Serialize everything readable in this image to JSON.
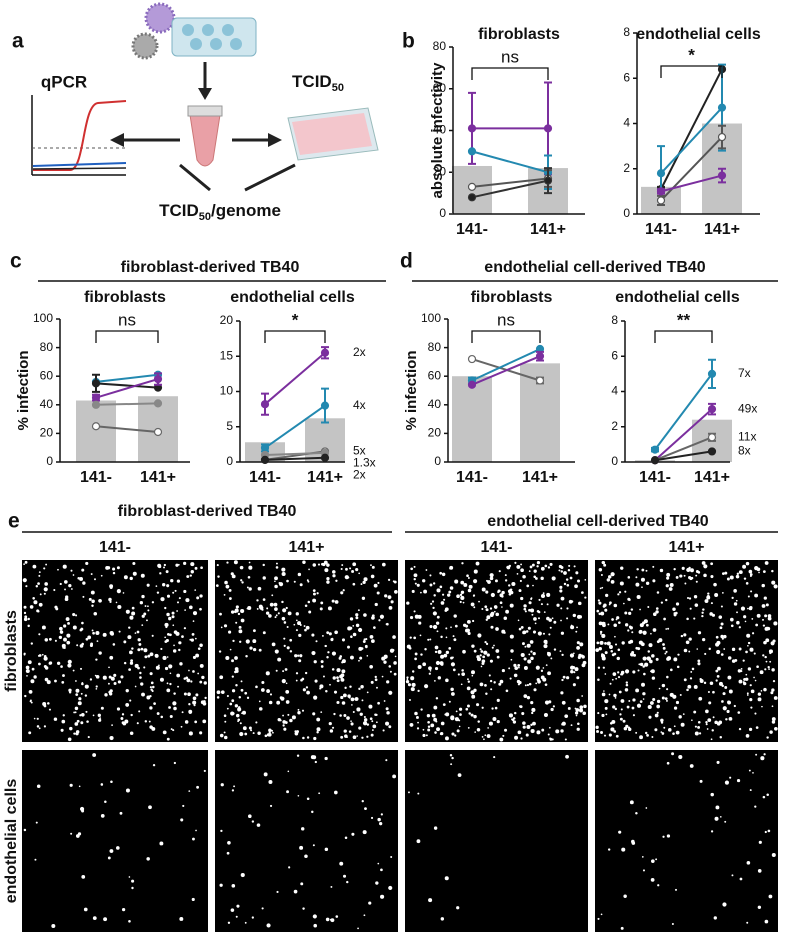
{
  "panel_labels": [
    "a",
    "b",
    "c",
    "d",
    "e"
  ],
  "diagram": {
    "qpcr": "qPCR",
    "tcid": {
      "main": "TCID",
      "sub": "50"
    },
    "result": {
      "main": "TCID",
      "sub": "50",
      "rest": "/genome"
    }
  },
  "headings": {
    "c": "fibroblast-derived TB40",
    "d": "endothelial cell-derived TB40"
  },
  "chart_data": [
    {
      "type": "bar",
      "title": "fibroblasts",
      "ylabel": "absolute infectivity",
      "categories": [
        "141-",
        "141+"
      ],
      "values": [
        23,
        22
      ],
      "color": "#c4c4c4",
      "ylim": [
        0,
        80
      ],
      "yticks": [
        0,
        20,
        40,
        60,
        80
      ],
      "significance": "ns",
      "series": [
        {
          "color": "#7b2f9e",
          "marker_color": "#7b2f9e",
          "values": [
            41,
            41
          ],
          "errors": [
            17,
            22
          ]
        },
        {
          "color": "#2389b0",
          "marker_color": "#2389b0",
          "values": [
            30,
            20
          ],
          "errors": [
            0,
            8
          ]
        },
        {
          "color": "#555555",
          "marker_color": "#ffffff",
          "values": [
            13,
            17
          ],
          "errors": [
            0,
            4
          ]
        },
        {
          "color": "#333333",
          "marker_color": "#222222",
          "values": [
            8,
            16
          ],
          "errors": [
            0,
            6
          ]
        }
      ]
    },
    {
      "type": "bar",
      "title": "endothelial cells",
      "categories": [
        "141-",
        "141+"
      ],
      "values": [
        1.2,
        4.0
      ],
      "color": "#c4c4c4",
      "ylim": [
        0,
        8
      ],
      "yticks": [
        0,
        2,
        4,
        6,
        8
      ],
      "significance": "*",
      "series": [
        {
          "color": "#222222",
          "marker_color": "#222222",
          "values": [
            1.1,
            6.4
          ],
          "errors": [
            0.1,
            0
          ]
        },
        {
          "color": "#2389b0",
          "marker_color": "#2389b0",
          "values": [
            1.8,
            4.7
          ],
          "errors": [
            1.2,
            1.9
          ]
        },
        {
          "color": "#555555",
          "marker_color": "#ffffff",
          "values": [
            0.6,
            3.4
          ],
          "errors": [
            0.2,
            0.5
          ]
        },
        {
          "color": "#7b2f9e",
          "marker_color": "#7b2f9e",
          "values": [
            1.0,
            1.7
          ],
          "errors": [
            0.1,
            0.3
          ]
        }
      ]
    },
    {
      "type": "bar",
      "title": "fibroblasts",
      "ylabel": "% infection",
      "categories": [
        "141-",
        "141+"
      ],
      "values": [
        43,
        46
      ],
      "color": "#c4c4c4",
      "ylim": [
        0,
        100
      ],
      "yticks": [
        0,
        20,
        40,
        60,
        80,
        100
      ],
      "significance": "ns",
      "series": [
        {
          "color": "#2389b0",
          "marker_color": "#2389b0",
          "values": [
            56,
            61
          ],
          "errors": [
            0,
            0
          ]
        },
        {
          "color": "#222222",
          "marker_color": "#222222",
          "values": [
            55,
            52
          ],
          "errors": [
            6,
            0
          ]
        },
        {
          "color": "#7b2f9e",
          "marker_color": "#7b2f9e",
          "values": [
            45,
            58
          ],
          "errors": [
            2,
            4
          ]
        },
        {
          "color": "#888888",
          "marker_color": "#888888",
          "values": [
            40,
            41
          ],
          "errors": [
            0,
            0
          ]
        },
        {
          "color": "#666666",
          "marker_color": "#ffffff",
          "values": [
            25,
            21
          ],
          "errors": [
            0,
            0
          ]
        }
      ]
    },
    {
      "type": "bar",
      "title": "endothelial cells",
      "categories": [
        "141-",
        "141+"
      ],
      "values": [
        2.8,
        6.2
      ],
      "color": "#c4c4c4",
      "ylim": [
        0,
        20
      ],
      "yticks": [
        0,
        5,
        10,
        15,
        20
      ],
      "significance": "*",
      "series": [
        {
          "color": "#7b2f9e",
          "marker_color": "#7b2f9e",
          "values": [
            8.2,
            15.5
          ],
          "errors": [
            1.5,
            0.8
          ],
          "annotation": "2x"
        },
        {
          "color": "#2389b0",
          "marker_color": "#2389b0",
          "values": [
            2.0,
            8.0
          ],
          "errors": [
            0.5,
            2.4
          ],
          "annotation": "4x"
        },
        {
          "color": "#666666",
          "marker_color": "#ffffff",
          "values": [
            0.3,
            1.5
          ],
          "errors": [
            0,
            0
          ],
          "annotation": "5x"
        },
        {
          "color": "#888888",
          "marker_color": "#888888",
          "values": [
            1.0,
            1.3
          ],
          "errors": [
            0,
            0
          ],
          "annotation": "1.3x"
        },
        {
          "color": "#222222",
          "marker_color": "#222222",
          "values": [
            0.3,
            0.6
          ],
          "errors": [
            0,
            0
          ],
          "annotation": "2x"
        }
      ]
    },
    {
      "type": "bar",
      "title": "fibroblasts",
      "ylabel": "% infection",
      "categories": [
        "141-",
        "141+"
      ],
      "values": [
        60,
        69
      ],
      "color": "#c4c4c4",
      "ylim": [
        0,
        100
      ],
      "yticks": [
        0,
        20,
        40,
        60,
        80,
        100
      ],
      "significance": "ns",
      "series": [
        {
          "color": "#666666",
          "marker_color": "#ffffff",
          "values": [
            72,
            57
          ],
          "errors": [
            0,
            2
          ]
        },
        {
          "color": "#2389b0",
          "marker_color": "#2389b0",
          "values": [
            57,
            79
          ],
          "errors": [
            2,
            0
          ]
        },
        {
          "color": "#7b2f9e",
          "marker_color": "#7b2f9e",
          "values": [
            54,
            74
          ],
          "errors": [
            0,
            3
          ]
        }
      ]
    },
    {
      "type": "bar",
      "title": "endothelial cells",
      "categories": [
        "141-",
        "141+"
      ],
      "values": [
        0.1,
        2.4
      ],
      "color": "#c4c4c4",
      "ylim": [
        0,
        8
      ],
      "yticks": [
        0,
        2,
        4,
        6,
        8
      ],
      "significance": "**",
      "series": [
        {
          "color": "#2389b0",
          "marker_color": "#2389b0",
          "values": [
            0.7,
            5.0
          ],
          "errors": [
            0.1,
            0.8
          ],
          "annotation": "7x"
        },
        {
          "color": "#7b2f9e",
          "marker_color": "#7b2f9e",
          "values": [
            0.1,
            3.0
          ],
          "errors": [
            0,
            0.3
          ],
          "annotation": "49x"
        },
        {
          "color": "#666666",
          "marker_color": "#ffffff",
          "values": [
            0.1,
            1.4
          ],
          "errors": [
            0,
            0.2
          ],
          "annotation": "11x"
        },
        {
          "color": "#222222",
          "marker_color": "#222222",
          "values": [
            0.1,
            0.6
          ],
          "errors": [
            0,
            0
          ],
          "annotation": "8x"
        }
      ]
    }
  ],
  "micrographs": {
    "groups": [
      "fibroblast-derived TB40",
      "endothelial cell-derived TB40"
    ],
    "columns": [
      "141-",
      "141+",
      "141-",
      "141+"
    ],
    "rows": [
      "fibroblasts",
      "endothelial cells"
    ]
  }
}
